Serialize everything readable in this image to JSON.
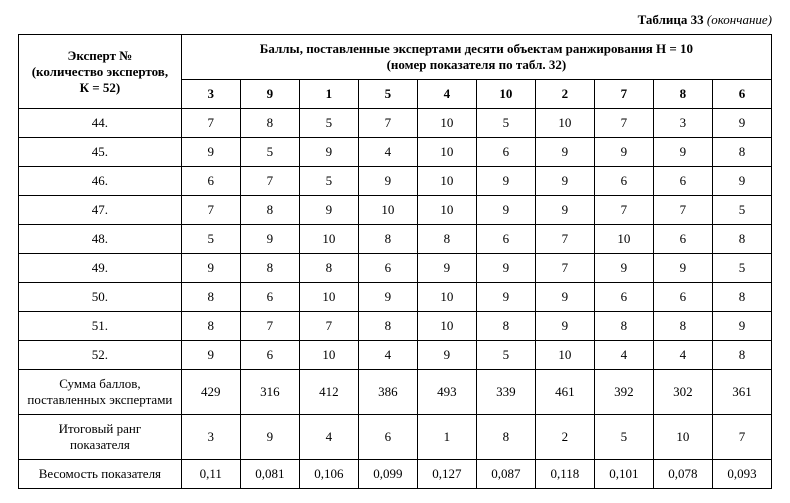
{
  "caption": {
    "main": "Таблица 33",
    "cont": "(окончание)"
  },
  "rowHeader": {
    "l1": "Эксперт №",
    "l2": "(количество экспертов,",
    "l3": "К = 52)"
  },
  "colGroupHeader": {
    "l1": "Баллы, поставленные экспертами десяти объектам ранжирования Н = 10",
    "l2": "(номер показателя по табл. 32)"
  },
  "cols": [
    "3",
    "9",
    "1",
    "5",
    "4",
    "10",
    "2",
    "7",
    "8",
    "6"
  ],
  "rows": [
    {
      "label": "44.",
      "v": [
        "7",
        "8",
        "5",
        "7",
        "10",
        "5",
        "10",
        "7",
        "3",
        "9"
      ]
    },
    {
      "label": "45.",
      "v": [
        "9",
        "5",
        "9",
        "4",
        "10",
        "6",
        "9",
        "9",
        "9",
        "8"
      ]
    },
    {
      "label": "46.",
      "v": [
        "6",
        "7",
        "5",
        "9",
        "10",
        "9",
        "9",
        "6",
        "6",
        "9"
      ]
    },
    {
      "label": "47.",
      "v": [
        "7",
        "8",
        "9",
        "10",
        "10",
        "9",
        "9",
        "7",
        "7",
        "5"
      ]
    },
    {
      "label": "48.",
      "v": [
        "5",
        "9",
        "10",
        "8",
        "8",
        "6",
        "7",
        "10",
        "6",
        "8"
      ]
    },
    {
      "label": "49.",
      "v": [
        "9",
        "8",
        "8",
        "6",
        "9",
        "9",
        "7",
        "9",
        "9",
        "5"
      ]
    },
    {
      "label": "50.",
      "v": [
        "8",
        "6",
        "10",
        "9",
        "10",
        "9",
        "9",
        "6",
        "6",
        "8"
      ]
    },
    {
      "label": "51.",
      "v": [
        "8",
        "7",
        "7",
        "8",
        "10",
        "8",
        "9",
        "8",
        "8",
        "9"
      ]
    },
    {
      "label": "52.",
      "v": [
        "9",
        "6",
        "10",
        "4",
        "9",
        "5",
        "10",
        "4",
        "4",
        "8"
      ]
    }
  ],
  "summary": [
    {
      "label_l1": "Сумма баллов,",
      "label_l2": "поставленных экспертами",
      "v": [
        "429",
        "316",
        "412",
        "386",
        "493",
        "339",
        "461",
        "392",
        "302",
        "361"
      ]
    },
    {
      "label_l1": "Итоговый ранг",
      "label_l2": "показателя",
      "v": [
        "3",
        "9",
        "4",
        "6",
        "1",
        "8",
        "2",
        "5",
        "10",
        "7"
      ]
    },
    {
      "label_l1": "Весомость показателя",
      "label_l2": "",
      "v": [
        "0,11",
        "0,081",
        "0,106",
        "0,099",
        "0,127",
        "0,087",
        "0,118",
        "0,101",
        "0,078",
        "0,093"
      ]
    }
  ]
}
